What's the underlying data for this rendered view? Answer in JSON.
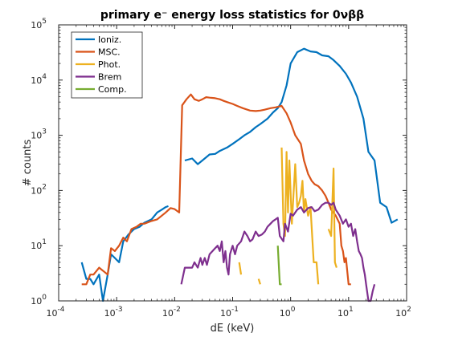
{
  "chart_data": {
    "type": "line",
    "title": "primary e⁻ energy loss statistics for 0νββ",
    "xlabel": "dE (keV)",
    "ylabel": "# counts",
    "xscale": "log",
    "yscale": "log",
    "xlim": [
      0.0001,
      100
    ],
    "ylim": [
      1,
      100000
    ],
    "x_ticks": [
      {
        "value": 0.0001,
        "base": "10",
        "exp": "-4"
      },
      {
        "value": 0.001,
        "base": "10",
        "exp": "-3"
      },
      {
        "value": 0.01,
        "base": "10",
        "exp": "-2"
      },
      {
        "value": 0.1,
        "base": "10",
        "exp": "-1"
      },
      {
        "value": 1,
        "base": "10",
        "exp": "0"
      },
      {
        "value": 10,
        "base": "10",
        "exp": "1"
      },
      {
        "value": 100,
        "base": "10",
        "exp": "2"
      }
    ],
    "y_ticks": [
      {
        "value": 1,
        "base": "10",
        "exp": "0"
      },
      {
        "value": 10,
        "base": "10",
        "exp": "1"
      },
      {
        "value": 100,
        "base": "10",
        "exp": "2"
      },
      {
        "value": 1000,
        "base": "10",
        "exp": "3"
      },
      {
        "value": 10000,
        "base": "10",
        "exp": "4"
      },
      {
        "value": 100000,
        "base": "10",
        "exp": "5"
      }
    ],
    "grid": false,
    "legend_position": "top-left",
    "series": [
      {
        "name": "Ioniz.",
        "color": "#0072BD",
        "segments": [
          [
            [
              0.00025,
              5
            ],
            [
              0.0003,
              2.5
            ],
            [
              0.00035,
              2.5
            ],
            [
              0.0004,
              2
            ],
            [
              0.0005,
              3
            ],
            [
              0.00058,
              1
            ],
            [
              0.0007,
              3
            ],
            [
              0.0008,
              7
            ],
            [
              0.00093,
              6
            ],
            [
              0.0011,
              5
            ],
            [
              0.0013,
              12
            ],
            [
              0.0016,
              16
            ],
            [
              0.002,
              20
            ],
            [
              0.0025,
              22
            ],
            [
              0.003,
              26
            ],
            [
              0.004,
              30
            ],
            [
              0.005,
              40
            ],
            [
              0.006,
              45
            ],
            [
              0.007,
              50
            ],
            [
              0.0078,
              52
            ]
          ],
          [
            [
              0.015,
              350
            ],
            [
              0.02,
              380
            ],
            [
              0.025,
              300
            ],
            [
              0.03,
              350
            ],
            [
              0.04,
              450
            ],
            [
              0.05,
              460
            ],
            [
              0.06,
              520
            ],
            [
              0.08,
              600
            ],
            [
              0.1,
              700
            ],
            [
              0.13,
              850
            ],
            [
              0.16,
              1000
            ],
            [
              0.2,
              1150
            ],
            [
              0.25,
              1400
            ],
            [
              0.3,
              1600
            ],
            [
              0.4,
              2000
            ],
            [
              0.5,
              2600
            ],
            [
              0.6,
              3100
            ],
            [
              0.7,
              4000
            ],
            [
              0.85,
              8000
            ],
            [
              1.0,
              20000
            ],
            [
              1.3,
              32000
            ],
            [
              1.7,
              37000
            ],
            [
              2.2,
              33000
            ],
            [
              2.8,
              32000
            ],
            [
              3.5,
              28000
            ],
            [
              4.5,
              27000
            ],
            [
              5.5,
              23000
            ],
            [
              7,
              18000
            ],
            [
              9,
              13000
            ],
            [
              11,
              9000
            ],
            [
              14,
              5000
            ],
            [
              18,
              2000
            ],
            [
              22,
              500
            ],
            [
              28,
              350
            ],
            [
              35,
              60
            ],
            [
              45,
              50
            ],
            [
              55,
              26
            ],
            [
              70,
              30
            ]
          ]
        ]
      },
      {
        "name": "MSC.",
        "color": "#D95319",
        "segments": [
          [
            [
              0.00025,
              2
            ],
            [
              0.0003,
              2
            ],
            [
              0.00035,
              3
            ],
            [
              0.0004,
              3
            ],
            [
              0.0005,
              4
            ],
            [
              0.0007,
              3
            ],
            [
              0.0008,
              9
            ],
            [
              0.00093,
              8
            ],
            [
              0.0011,
              10
            ],
            [
              0.0013,
              14
            ],
            [
              0.0015,
              12
            ],
            [
              0.0018,
              20
            ],
            [
              0.0022,
              22
            ],
            [
              0.0026,
              25
            ],
            [
              0.003,
              25
            ],
            [
              0.004,
              28
            ],
            [
              0.005,
              30
            ],
            [
              0.006,
              35
            ],
            [
              0.007,
              40
            ],
            [
              0.0085,
              48
            ],
            [
              0.01,
              46
            ],
            [
              0.012,
              40
            ],
            [
              0.0135,
              3500
            ],
            [
              0.016,
              4500
            ],
            [
              0.019,
              5500
            ],
            [
              0.022,
              4500
            ],
            [
              0.026,
              4200
            ],
            [
              0.03,
              4500
            ],
            [
              0.035,
              4900
            ],
            [
              0.04,
              4800
            ],
            [
              0.05,
              4700
            ],
            [
              0.06,
              4500
            ],
            [
              0.07,
              4200
            ],
            [
              0.08,
              4000
            ],
            [
              0.1,
              3700
            ],
            [
              0.12,
              3400
            ],
            [
              0.15,
              3100
            ],
            [
              0.2,
              2800
            ],
            [
              0.25,
              2750
            ],
            [
              0.3,
              2800
            ],
            [
              0.35,
              2900
            ],
            [
              0.45,
              3100
            ],
            [
              0.55,
              3200
            ],
            [
              0.7,
              3400
            ],
            [
              0.85,
              2500
            ],
            [
              1,
              1700
            ],
            [
              1.2,
              1000
            ],
            [
              1.5,
              700
            ],
            [
              1.7,
              350
            ],
            [
              2,
              200
            ],
            [
              2.3,
              150
            ],
            [
              2.6,
              130
            ],
            [
              3,
              120
            ],
            [
              3.5,
              100
            ],
            [
              4,
              80
            ],
            [
              4.5,
              60
            ],
            [
              5,
              45
            ],
            [
              6,
              35
            ],
            [
              7,
              25
            ],
            [
              7.5,
              10
            ],
            [
              8,
              8
            ],
            [
              8.5,
              5
            ],
            [
              9,
              6
            ],
            [
              10,
              2
            ],
            [
              11,
              2
            ]
          ]
        ]
      },
      {
        "name": "Phot.",
        "color": "#EDB120",
        "segments": [
          [
            [
              0.13,
              5
            ],
            [
              0.14,
              3
            ]
          ],
          [
            [
              0.28,
              2.5
            ],
            [
              0.3,
              2
            ]
          ],
          [
            [
              0.7,
              600
            ],
            [
              0.75,
              25
            ],
            [
              0.8,
              15
            ],
            [
              0.85,
              500
            ],
            [
              0.9,
              40
            ],
            [
              0.95,
              350
            ],
            [
              1.05,
              25
            ],
            [
              1.2,
              300
            ],
            [
              1.3,
              50
            ],
            [
              1.4,
              60
            ],
            [
              1.5,
              80
            ],
            [
              1.6,
              150
            ],
            [
              1.7,
              40
            ],
            [
              1.8,
              70
            ],
            [
              2,
              35
            ],
            [
              2.2,
              50
            ],
            [
              2.5,
              5
            ],
            [
              2.8,
              5
            ],
            [
              3,
              2
            ]
          ],
          [
            [
              4.5,
              20
            ],
            [
              5,
              15
            ],
            [
              5.5,
              250
            ],
            [
              5.8,
              5
            ],
            [
              6.2,
              4
            ]
          ]
        ]
      },
      {
        "name": "Brem",
        "color": "#7E2F8E",
        "segments": [
          [
            [
              0.013,
              2
            ],
            [
              0.015,
              4
            ],
            [
              0.018,
              4
            ],
            [
              0.02,
              4
            ],
            [
              0.022,
              5
            ],
            [
              0.025,
              4
            ],
            [
              0.028,
              6
            ],
            [
              0.03,
              4.5
            ],
            [
              0.033,
              6
            ],
            [
              0.036,
              4.5
            ],
            [
              0.04,
              7
            ],
            [
              0.045,
              8
            ],
            [
              0.05,
              9
            ],
            [
              0.055,
              10
            ],
            [
              0.06,
              8
            ],
            [
              0.065,
              12
            ],
            [
              0.07,
              5
            ],
            [
              0.075,
              8
            ],
            [
              0.08,
              4
            ],
            [
              0.085,
              3
            ],
            [
              0.09,
              7
            ],
            [
              0.1,
              10
            ],
            [
              0.11,
              7
            ],
            [
              0.12,
              10
            ],
            [
              0.14,
              12
            ],
            [
              0.16,
              18
            ],
            [
              0.18,
              15
            ],
            [
              0.2,
              12
            ],
            [
              0.22,
              13
            ],
            [
              0.25,
              18
            ],
            [
              0.28,
              15
            ],
            [
              0.32,
              16
            ],
            [
              0.36,
              18
            ],
            [
              0.4,
              22
            ],
            [
              0.45,
              25
            ],
            [
              0.5,
              28
            ],
            [
              0.55,
              30
            ],
            [
              0.6,
              32
            ],
            [
              0.65,
              15
            ],
            [
              0.75,
              12
            ],
            [
              0.8,
              25
            ],
            [
              0.9,
              18
            ],
            [
              1,
              38
            ],
            [
              1.1,
              35
            ],
            [
              1.3,
              45
            ],
            [
              1.5,
              50
            ],
            [
              1.7,
              40
            ],
            [
              2,
              48
            ],
            [
              2.3,
              50
            ],
            [
              2.6,
              42
            ],
            [
              3,
              45
            ],
            [
              3.5,
              55
            ],
            [
              4,
              60
            ],
            [
              4.5,
              60
            ],
            [
              5,
              55
            ],
            [
              5.5,
              60
            ],
            [
              6,
              45
            ],
            [
              7,
              35
            ],
            [
              8,
              25
            ],
            [
              9,
              30
            ],
            [
              10,
              22
            ],
            [
              11,
              25
            ],
            [
              12,
              15
            ],
            [
              13,
              20
            ],
            [
              14,
              12
            ],
            [
              15,
              8
            ],
            [
              16,
              7
            ],
            [
              17,
              6
            ],
            [
              18,
              4
            ],
            [
              19,
              3
            ],
            [
              20,
              2
            ],
            [
              22,
              1
            ],
            [
              24,
              1
            ],
            [
              26,
              1.5
            ],
            [
              28,
              2
            ]
          ]
        ]
      },
      {
        "name": "Comp.",
        "color": "#77AC30",
        "segments": [
          [
            [
              0.6,
              10
            ],
            [
              0.65,
              2
            ],
            [
              0.7,
              2
            ]
          ]
        ]
      }
    ]
  }
}
